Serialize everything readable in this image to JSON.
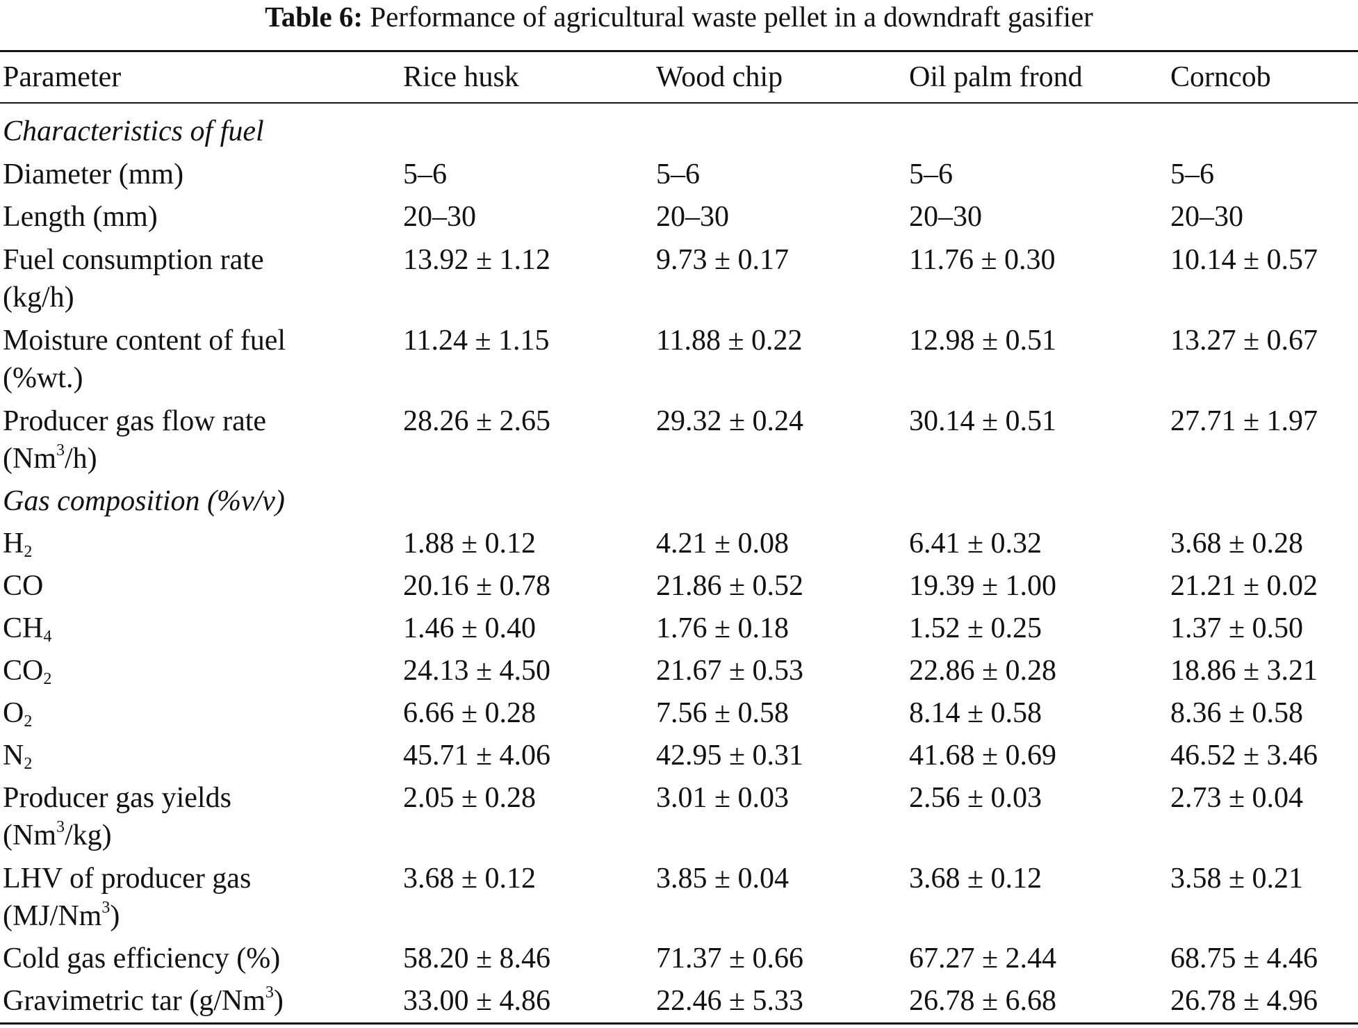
{
  "caption": {
    "label": "Table 6:",
    "text": "Performance of agricultural waste pellet in a downdraft gasifier"
  },
  "header": {
    "parameter": "Parameter",
    "col1": "Rice husk",
    "col2": "Wood chip",
    "col3": "Oil palm frond",
    "col4": "Corncob"
  },
  "sections": {
    "fuel": "Characteristics of fuel",
    "gas": "Gas composition (%v/v)"
  },
  "rows": {
    "diameter": {
      "label": "Diameter (mm)",
      "v": [
        "5–6",
        "5–6",
        "5–6",
        "5–6"
      ]
    },
    "length": {
      "label": "Length (mm)",
      "v": [
        "20–30",
        "20–30",
        "20–30",
        "20–30"
      ]
    },
    "fuel_rate": {
      "label1": "Fuel consumption rate",
      "label2": "(kg/h)",
      "v": [
        "13.92 ± 1.12",
        "9.73 ± 0.17",
        "11.76 ± 0.30",
        "10.14 ± 0.57"
      ]
    },
    "moisture": {
      "label1": "Moisture content of fuel",
      "label2": "(%wt.)",
      "v": [
        "11.24 ± 1.15",
        "11.88 ± 0.22",
        "12.98 ± 0.51",
        "13.27 ± 0.67"
      ]
    },
    "gas_flow": {
      "label1": "Producer gas flow rate",
      "label2_pre": "(Nm",
      "label2_sup": "3",
      "label2_post": "/h)",
      "v": [
        "28.26 ± 2.65",
        "29.32 ± 0.24",
        "30.14 ± 0.51",
        "27.71 ± 1.97"
      ]
    },
    "h2": {
      "base": "H",
      "sub": "2",
      "v": [
        "1.88 ± 0.12",
        "4.21 ± 0.08",
        "6.41 ± 0.32",
        "3.68 ± 0.28"
      ]
    },
    "co": {
      "label": "CO",
      "v": [
        "20.16 ± 0.78",
        "21.86 ± 0.52",
        "19.39 ± 1.00",
        "21.21 ± 0.02"
      ]
    },
    "ch4": {
      "base": "CH",
      "sub": "4",
      "v": [
        "1.46 ± 0.40",
        "1.76 ± 0.18",
        "1.52 ± 0.25",
        "1.37 ± 0.50"
      ]
    },
    "co2": {
      "base": "CO",
      "sub": "2",
      "v": [
        "24.13 ± 4.50",
        "21.67 ± 0.53",
        "22.86 ± 0.28",
        "18.86 ± 3.21"
      ]
    },
    "o2": {
      "base": "O",
      "sub": "2",
      "v": [
        "6.66 ± 0.28",
        "7.56 ± 0.58",
        "8.14 ± 0.58",
        "8.36 ± 0.58"
      ]
    },
    "n2": {
      "base": "N",
      "sub": "2",
      "v": [
        "45.71 ± 4.06",
        "42.95 ± 0.31",
        "41.68 ± 0.69",
        "46.52 ± 3.46"
      ]
    },
    "gas_yield": {
      "label1": "Producer gas yields",
      "label2_pre": "(Nm",
      "label2_sup": "3",
      "label2_post": "/kg)",
      "v": [
        "2.05 ± 0.28",
        "3.01 ± 0.03",
        "2.56 ± 0.03",
        "2.73 ± 0.04"
      ]
    },
    "lhv": {
      "label1": "LHV of producer gas",
      "label2_pre": "(MJ/Nm",
      "label2_sup": "3",
      "label2_post": ")",
      "v": [
        "3.68 ± 0.12",
        "3.85 ± 0.04",
        "3.68 ± 0.12",
        "3.58 ± 0.21"
      ]
    },
    "cge": {
      "label": "Cold gas efficiency (%)",
      "v": [
        "58.20 ± 8.46",
        "71.37 ± 0.66",
        "67.27 ± 2.44",
        "68.75 ± 4.46"
      ]
    },
    "tar": {
      "label_pre": "Gravimetric tar (g/Nm",
      "label_sup": "3",
      "label_post": ")",
      "v": [
        "33.00 ± 4.86",
        "22.46 ± 5.33",
        "26.78 ± 6.68",
        "26.78 ± 4.96"
      ]
    }
  }
}
